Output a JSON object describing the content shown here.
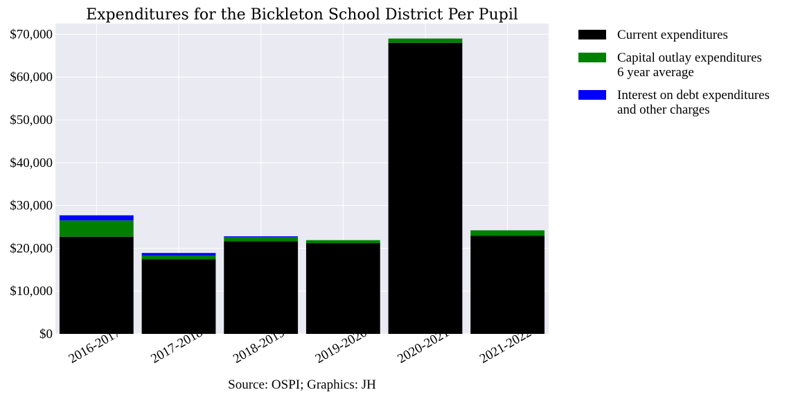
{
  "chart_data": {
    "type": "bar",
    "stacked": true,
    "title": "Expenditures for the Bickleton School District Per Pupil",
    "xlabel": "Source: OSPI; Graphics: JH",
    "ylabel": "",
    "ylim": [
      0,
      72500
    ],
    "yticks": [
      0,
      10000,
      20000,
      30000,
      40000,
      50000,
      60000,
      70000
    ],
    "ytick_labels": [
      "$0",
      "$10,000",
      "$20,000",
      "$30,000",
      "$40,000",
      "$50,000",
      "$60,000",
      "$70,000"
    ],
    "categories": [
      "2016-2017",
      "2017-2018",
      "2018-2019",
      "2019-2020",
      "2020-2021",
      "2021-2022"
    ],
    "grid": true,
    "legend_position": "outside-right-top",
    "series": [
      {
        "name_lines": [
          "Current expenditures"
        ],
        "color": "#000000",
        "values": [
          22700,
          17400,
          21600,
          21200,
          68000,
          22900
        ]
      },
      {
        "name_lines": [
          "Capital outlay expenditures",
          "6 year average"
        ],
        "color": "#008000",
        "values": [
          3800,
          900,
          1000,
          700,
          1000,
          1300
        ]
      },
      {
        "name_lines": [
          "Interest on debt expenditures",
          "and other charges"
        ],
        "color": "#0000ff",
        "values": [
          1200,
          600,
          200,
          0,
          0,
          0
        ]
      }
    ]
  }
}
